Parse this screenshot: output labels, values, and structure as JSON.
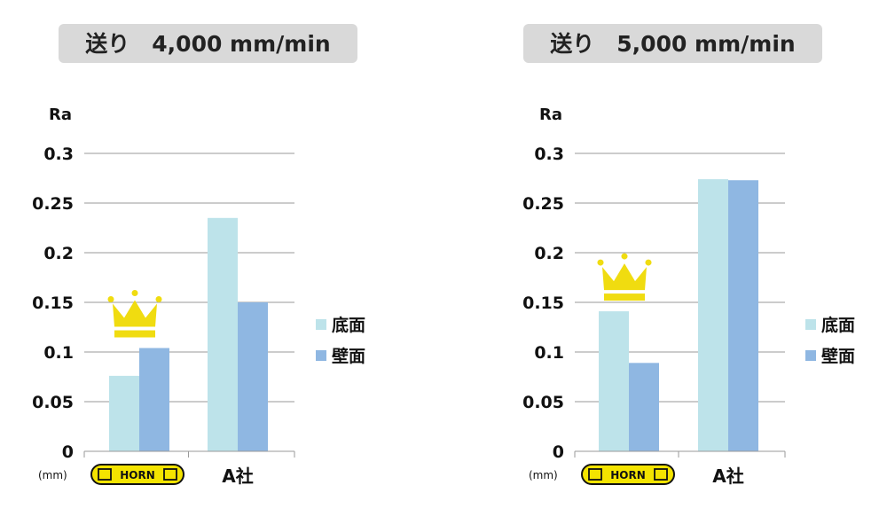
{
  "colors": {
    "bottom": "#bde3ea",
    "wall": "#8fb7e2",
    "title_bg": "#d9d9d9",
    "grid": "#9a9a9a",
    "crown": "#f0dc10",
    "logo_bg": "#f4e400"
  },
  "icons": [
    "crown-icon",
    "horn-logo"
  ],
  "chart_data": [
    {
      "type": "bar",
      "title": "送り　4,000 mm/min",
      "ylabel": "Ra",
      "unit": "(mm)",
      "ylim": [
        0,
        0.3
      ],
      "yticks": [
        "0",
        "0.05",
        "0.1",
        "0.15",
        "0.2",
        "0.25",
        "0.3"
      ],
      "categories": [
        "HORN",
        "A社"
      ],
      "series": [
        {
          "name": "底面",
          "values": [
            0.076,
            0.235
          ]
        },
        {
          "name": "壁面",
          "values": [
            0.104,
            0.15
          ]
        }
      ],
      "legend": "right",
      "grid": true,
      "winner": "HORN"
    },
    {
      "type": "bar",
      "title": "送り　5,000 mm/min",
      "ylabel": "Ra",
      "unit": "(mm)",
      "ylim": [
        0,
        0.3
      ],
      "yticks": [
        "0",
        "0.05",
        "0.1",
        "0.15",
        "0.2",
        "0.25",
        "0.3"
      ],
      "categories": [
        "HORN",
        "A社"
      ],
      "series": [
        {
          "name": "底面",
          "values": [
            0.141,
            0.274
          ]
        },
        {
          "name": "壁面",
          "values": [
            0.089,
            0.273
          ]
        }
      ],
      "legend": "right",
      "grid": true,
      "winner": "HORN"
    }
  ]
}
